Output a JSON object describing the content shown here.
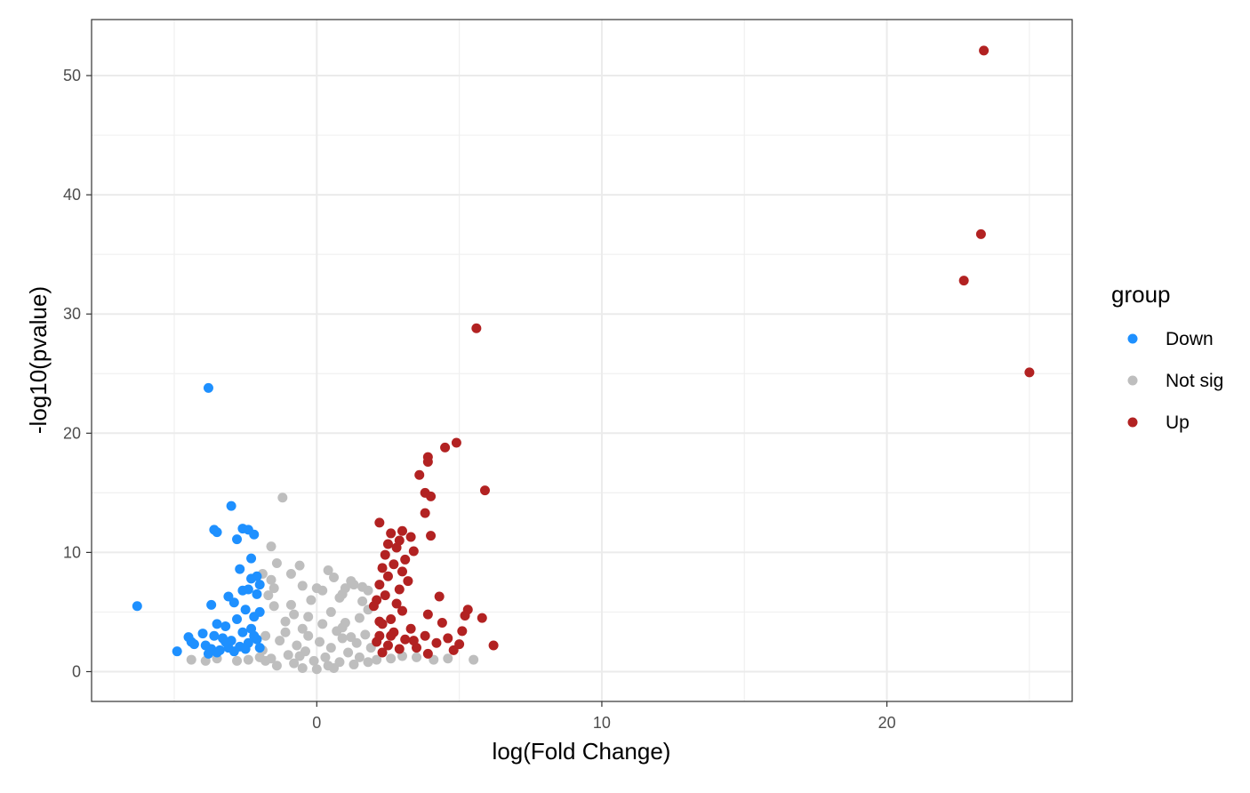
{
  "chart_data": {
    "type": "scatter",
    "xlabel": "log(Fold Change)",
    "ylabel": "-log10(pvalue)",
    "xlim": [
      -7.9,
      26.5
    ],
    "ylim": [
      -2.5,
      54.7
    ],
    "x_ticks": [
      0,
      10,
      20
    ],
    "y_ticks": [
      0,
      10,
      20,
      30,
      40,
      50
    ],
    "x_tick_labels": [
      "0",
      "10",
      "20"
    ],
    "y_tick_labels": [
      "0",
      "10",
      "20",
      "30",
      "40",
      "50"
    ],
    "grid": true,
    "legend": {
      "title": "group",
      "position": "right",
      "entries": [
        {
          "label": "Down",
          "color": "#1E90FF"
        },
        {
          "label": "Not sig",
          "color": "#BEBEBE"
        },
        {
          "label": "Up",
          "color": "#B22222"
        }
      ]
    },
    "series": [
      {
        "name": "Down",
        "color": "#1E90FF",
        "points": [
          [
            -6.3,
            5.5
          ],
          [
            -3.8,
            23.8
          ],
          [
            -3.0,
            13.9
          ],
          [
            -3.6,
            11.9
          ],
          [
            -3.5,
            11.7
          ],
          [
            -2.6,
            12.0
          ],
          [
            -2.4,
            11.9
          ],
          [
            -2.2,
            11.5
          ],
          [
            -2.8,
            11.1
          ],
          [
            -2.3,
            9.5
          ],
          [
            -2.7,
            8.6
          ],
          [
            -2.1,
            8.0
          ],
          [
            -3.1,
            6.3
          ],
          [
            -2.6,
            6.8
          ],
          [
            -2.4,
            6.9
          ],
          [
            -3.7,
            5.6
          ],
          [
            -2.9,
            5.8
          ],
          [
            -2.1,
            6.5
          ],
          [
            -2.5,
            5.2
          ],
          [
            -3.5,
            4.0
          ],
          [
            -3.2,
            3.8
          ],
          [
            -2.8,
            4.4
          ],
          [
            -2.2,
            4.6
          ],
          [
            -2.0,
            5.0
          ],
          [
            -4.5,
            2.9
          ],
          [
            -4.4,
            2.5
          ],
          [
            -4.0,
            3.2
          ],
          [
            -3.6,
            3.0
          ],
          [
            -3.3,
            2.8
          ],
          [
            -3.0,
            2.6
          ],
          [
            -2.6,
            3.3
          ],
          [
            -2.3,
            3.6
          ],
          [
            -4.9,
            1.7
          ],
          [
            -3.9,
            2.2
          ],
          [
            -3.7,
            1.9
          ],
          [
            -3.4,
            1.8
          ],
          [
            -3.1,
            2.0
          ],
          [
            -2.7,
            2.1
          ],
          [
            -2.4,
            2.4
          ],
          [
            -2.1,
            2.7
          ],
          [
            -3.8,
            1.5
          ],
          [
            -3.5,
            1.6
          ],
          [
            -2.9,
            1.7
          ],
          [
            -2.5,
            1.9
          ],
          [
            -4.3,
            2.3
          ],
          [
            -2.2,
            3.0
          ],
          [
            -2.0,
            7.3
          ],
          [
            -2.3,
            7.8
          ],
          [
            -2.0,
            2.0
          ],
          [
            -3.2,
            2.5
          ]
        ]
      },
      {
        "name": "Up",
        "color": "#B22222",
        "points": [
          [
            23.4,
            52.1
          ],
          [
            23.3,
            36.7
          ],
          [
            22.7,
            32.8
          ],
          [
            25.0,
            25.1
          ],
          [
            5.6,
            28.8
          ],
          [
            4.9,
            19.2
          ],
          [
            4.5,
            18.8
          ],
          [
            3.9,
            18.0
          ],
          [
            3.9,
            17.6
          ],
          [
            3.6,
            16.5
          ],
          [
            5.9,
            15.2
          ],
          [
            3.8,
            15.0
          ],
          [
            4.0,
            14.7
          ],
          [
            3.8,
            13.3
          ],
          [
            2.2,
            12.5
          ],
          [
            4.0,
            11.4
          ],
          [
            3.0,
            11.8
          ],
          [
            2.6,
            11.6
          ],
          [
            3.3,
            11.3
          ],
          [
            2.9,
            11.0
          ],
          [
            2.5,
            10.7
          ],
          [
            2.8,
            10.4
          ],
          [
            3.4,
            10.1
          ],
          [
            2.4,
            9.8
          ],
          [
            3.1,
            9.4
          ],
          [
            2.7,
            9.0
          ],
          [
            2.3,
            8.7
          ],
          [
            3.0,
            8.4
          ],
          [
            2.5,
            8.0
          ],
          [
            3.2,
            7.6
          ],
          [
            2.2,
            7.3
          ],
          [
            2.9,
            6.9
          ],
          [
            4.3,
            6.3
          ],
          [
            2.4,
            6.4
          ],
          [
            2.1,
            6.0
          ],
          [
            2.8,
            5.7
          ],
          [
            5.3,
            5.2
          ],
          [
            3.0,
            5.1
          ],
          [
            5.2,
            4.7
          ],
          [
            5.8,
            4.5
          ],
          [
            3.9,
            4.8
          ],
          [
            2.6,
            4.4
          ],
          [
            4.4,
            4.1
          ],
          [
            2.3,
            4.0
          ],
          [
            3.3,
            3.6
          ],
          [
            5.1,
            3.4
          ],
          [
            2.7,
            3.3
          ],
          [
            3.8,
            3.0
          ],
          [
            2.2,
            3.0
          ],
          [
            4.6,
            2.8
          ],
          [
            3.1,
            2.7
          ],
          [
            6.2,
            2.2
          ],
          [
            5.0,
            2.3
          ],
          [
            4.2,
            2.4
          ],
          [
            2.5,
            2.2
          ],
          [
            3.5,
            2.0
          ],
          [
            2.9,
            1.9
          ],
          [
            4.8,
            1.8
          ],
          [
            2.3,
            1.6
          ],
          [
            3.9,
            1.5
          ],
          [
            2.1,
            2.5
          ],
          [
            2.0,
            5.5
          ],
          [
            2.2,
            4.2
          ],
          [
            2.6,
            3.0
          ],
          [
            3.4,
            2.6
          ]
        ]
      },
      {
        "name": "Not sig",
        "color": "#BEBEBE",
        "points": [
          [
            -1.2,
            14.6
          ],
          [
            -1.6,
            10.5
          ],
          [
            -1.4,
            9.1
          ],
          [
            -0.6,
            8.9
          ],
          [
            0.4,
            8.5
          ],
          [
            -1.9,
            8.2
          ],
          [
            -0.9,
            8.2
          ],
          [
            0.6,
            7.9
          ],
          [
            1.2,
            7.6
          ],
          [
            1.3,
            7.3
          ],
          [
            1.6,
            7.1
          ],
          [
            -0.5,
            7.2
          ],
          [
            1.0,
            7.0
          ],
          [
            0.0,
            7.0
          ],
          [
            -1.5,
            7.0
          ],
          [
            1.8,
            6.8
          ],
          [
            -1.7,
            6.4
          ],
          [
            0.9,
            6.5
          ],
          [
            -0.2,
            6.0
          ],
          [
            0.8,
            6.2
          ],
          [
            -1.5,
            5.5
          ],
          [
            1.8,
            5.2
          ],
          [
            -0.8,
            4.8
          ],
          [
            0.5,
            5.0
          ],
          [
            1.5,
            4.5
          ],
          [
            -1.1,
            4.2
          ],
          [
            0.2,
            4.0
          ],
          [
            1.0,
            4.1
          ],
          [
            -0.5,
            3.6
          ],
          [
            0.7,
            3.4
          ],
          [
            1.7,
            3.1
          ],
          [
            -1.8,
            3.0
          ],
          [
            -0.3,
            3.0
          ],
          [
            0.9,
            2.8
          ],
          [
            -1.3,
            2.6
          ],
          [
            0.1,
            2.5
          ],
          [
            1.4,
            2.4
          ],
          [
            -0.7,
            2.2
          ],
          [
            0.5,
            2.0
          ],
          [
            1.9,
            2.0
          ],
          [
            -1.9,
            1.8
          ],
          [
            -0.4,
            1.7
          ],
          [
            1.1,
            1.6
          ],
          [
            -1.0,
            1.4
          ],
          [
            0.3,
            1.2
          ],
          [
            1.5,
            1.2
          ],
          [
            -1.6,
            1.1
          ],
          [
            -0.1,
            0.9
          ],
          [
            0.8,
            0.8
          ],
          [
            -0.8,
            0.7
          ],
          [
            0.4,
            0.5
          ],
          [
            1.3,
            0.6
          ],
          [
            -1.4,
            0.5
          ],
          [
            0.0,
            0.2
          ],
          [
            -0.5,
            0.3
          ],
          [
            0.6,
            0.3
          ],
          [
            1.8,
            0.8
          ],
          [
            -1.8,
            0.9
          ],
          [
            -3.9,
            0.9
          ],
          [
            -4.4,
            1.0
          ],
          [
            -3.5,
            1.1
          ],
          [
            -2.8,
            0.9
          ],
          [
            -2.4,
            1.0
          ],
          [
            -2.0,
            1.2
          ],
          [
            2.1,
            1.0
          ],
          [
            2.6,
            1.1
          ],
          [
            3.0,
            1.3
          ],
          [
            3.5,
            1.2
          ],
          [
            4.1,
            1.0
          ],
          [
            4.6,
            1.1
          ],
          [
            5.5,
            1.0
          ],
          [
            -0.9,
            5.6
          ],
          [
            0.2,
            6.8
          ],
          [
            -1.6,
            7.7
          ],
          [
            1.6,
            5.9
          ],
          [
            -0.3,
            4.6
          ],
          [
            0.9,
            3.7
          ],
          [
            -1.1,
            3.3
          ],
          [
            1.2,
            2.9
          ],
          [
            -0.6,
            1.3
          ]
        ]
      }
    ]
  }
}
